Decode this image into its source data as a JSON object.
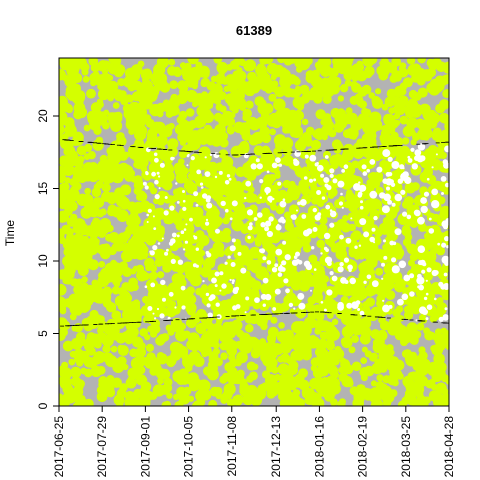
{
  "chart_data": {
    "type": "scatter",
    "title": "61389",
    "xlabel": "",
    "ylabel": "Time",
    "x_axis": {
      "type": "date",
      "range": [
        "2017-06-25",
        "2018-04-28"
      ],
      "tick_labels": [
        "2017-06-25",
        "2017-07-29",
        "2017-09-01",
        "2017-10-05",
        "2017-11-08",
        "2017-12-13",
        "2018-01-16",
        "2018-02-19",
        "2018-03-25",
        "2018-04-28"
      ]
    },
    "y_axis": {
      "range": [
        0,
        24
      ],
      "tick_labels": [
        "0",
        "5",
        "10",
        "15",
        "20"
      ]
    },
    "grid": false,
    "legend": "none",
    "colors": {
      "panel_background": "#b3b3b3",
      "points": "#d4ff00",
      "white_gaps": "#ffffff",
      "dark_marks": "#000000"
    },
    "series": [
      {
        "description_free": true,
        "sunrise_line": [
          {
            "x": "2017-06-25",
            "y": 5.5
          },
          {
            "x": "2017-09-01",
            "y": 5.8
          },
          {
            "x": "2017-11-08",
            "y": 6.2
          },
          {
            "x": "2018-01-16",
            "y": 6.5
          },
          {
            "x": "2018-04-28",
            "y": 5.7
          }
        ],
        "sunset_line": [
          {
            "x": "2017-06-25",
            "y": 18.4
          },
          {
            "x": "2017-09-01",
            "y": 17.8
          },
          {
            "x": "2017-11-08",
            "y": 17.3
          },
          {
            "x": "2018-01-16",
            "y": 17.6
          },
          {
            "x": "2018-04-28",
            "y": 18.2
          }
        ]
      }
    ]
  }
}
